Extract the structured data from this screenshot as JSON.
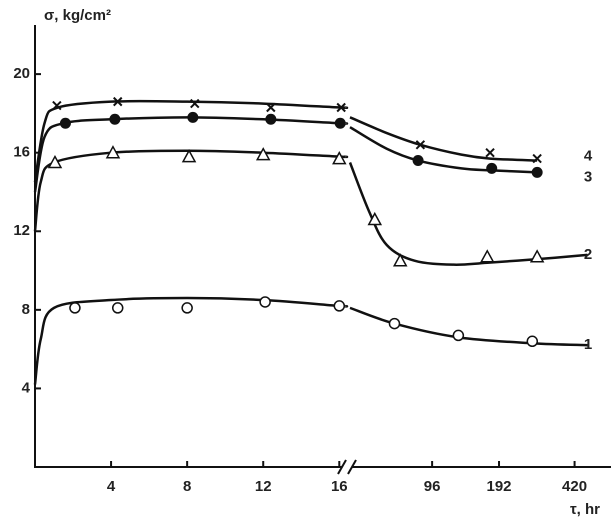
{
  "chart_data": {
    "type": "line",
    "ylabel": "σ, kg/cm²",
    "xlabel": "τ, hr",
    "ylim": [
      0,
      22.5
    ],
    "yticks": [
      4,
      8,
      12,
      16,
      20
    ],
    "xsegments": [
      {
        "scale": "linear",
        "xlim": [
          0,
          16.3
        ],
        "xticks": [
          4,
          8,
          12,
          16
        ]
      },
      {
        "scale": "log",
        "xlim": [
          41,
          600
        ],
        "xticks": [
          96,
          192,
          420
        ]
      }
    ],
    "series": [
      {
        "name": "4",
        "color": "#111111",
        "marker": "cross",
        "x": [
          1.15,
          4.35,
          8.4,
          12.4,
          16.1,
          85,
          175,
          285
        ],
        "values": [
          18.4,
          18.6,
          18.5,
          18.3,
          18.3,
          16.4,
          16.0,
          15.7
        ],
        "curve_x": [
          0,
          0.5,
          1.2,
          4,
          8,
          12,
          16,
          16.3,
          null,
          41,
          60,
          85,
          130,
          175,
          285
        ],
        "curve_y": [
          14.5,
          17.5,
          18.3,
          18.6,
          18.6,
          18.5,
          18.3,
          18.3,
          null,
          17.8,
          17.0,
          16.4,
          15.9,
          15.7,
          15.6
        ]
      },
      {
        "name": "3",
        "color": "#111111",
        "marker": "dot",
        "x": [
          1.6,
          4.2,
          8.3,
          12.4,
          16.05,
          83,
          178,
          285
        ],
        "values": [
          17.5,
          17.7,
          17.8,
          17.7,
          17.5,
          15.6,
          15.2,
          15.0
        ],
        "curve_x": [
          0,
          0.5,
          1.5,
          4,
          8,
          12,
          16,
          16.3,
          null,
          41,
          60,
          83,
          130,
          178,
          285
        ],
        "curve_y": [
          14,
          16.8,
          17.5,
          17.7,
          17.8,
          17.7,
          17.5,
          17.5,
          null,
          17.3,
          16.2,
          15.6,
          15.2,
          15.1,
          15.0
        ]
      },
      {
        "name": "2",
        "color": "#111111",
        "marker": "triangle",
        "x": [
          1.05,
          4.1,
          8.1,
          12.0,
          16.0,
          53,
          69,
          170,
          285
        ],
        "values": [
          15.5,
          16.0,
          15.8,
          15.9,
          15.7,
          12.6,
          10.5,
          10.7,
          10.7
        ],
        "curve_x": [
          0,
          0.3,
          1,
          4,
          8,
          12,
          16,
          16.3,
          null,
          41,
          50,
          60,
          80,
          120,
          170,
          300,
          480
        ],
        "curve_y": [
          12,
          14.5,
          15.5,
          16.0,
          16.1,
          16.0,
          15.8,
          15.8,
          null,
          15.5,
          13,
          11.3,
          10.5,
          10.3,
          10.4,
          10.6,
          10.8
        ]
      },
      {
        "name": "1",
        "color": "#111111",
        "marker": "circle",
        "x": [
          2.1,
          4.35,
          8.0,
          12.1,
          16.0,
          65,
          126,
          271
        ],
        "values": [
          8.1,
          8.1,
          8.1,
          8.4,
          8.2,
          7.3,
          6.7,
          6.4
        ],
        "curve_x": [
          0,
          0.3,
          1,
          4,
          8,
          12,
          16,
          16.3,
          null,
          41,
          65,
          126,
          271,
          480
        ],
        "curve_y": [
          4.2,
          6.5,
          8.1,
          8.5,
          8.6,
          8.5,
          8.2,
          8.2,
          null,
          8.1,
          7.3,
          6.6,
          6.3,
          6.2
        ]
      }
    ]
  }
}
